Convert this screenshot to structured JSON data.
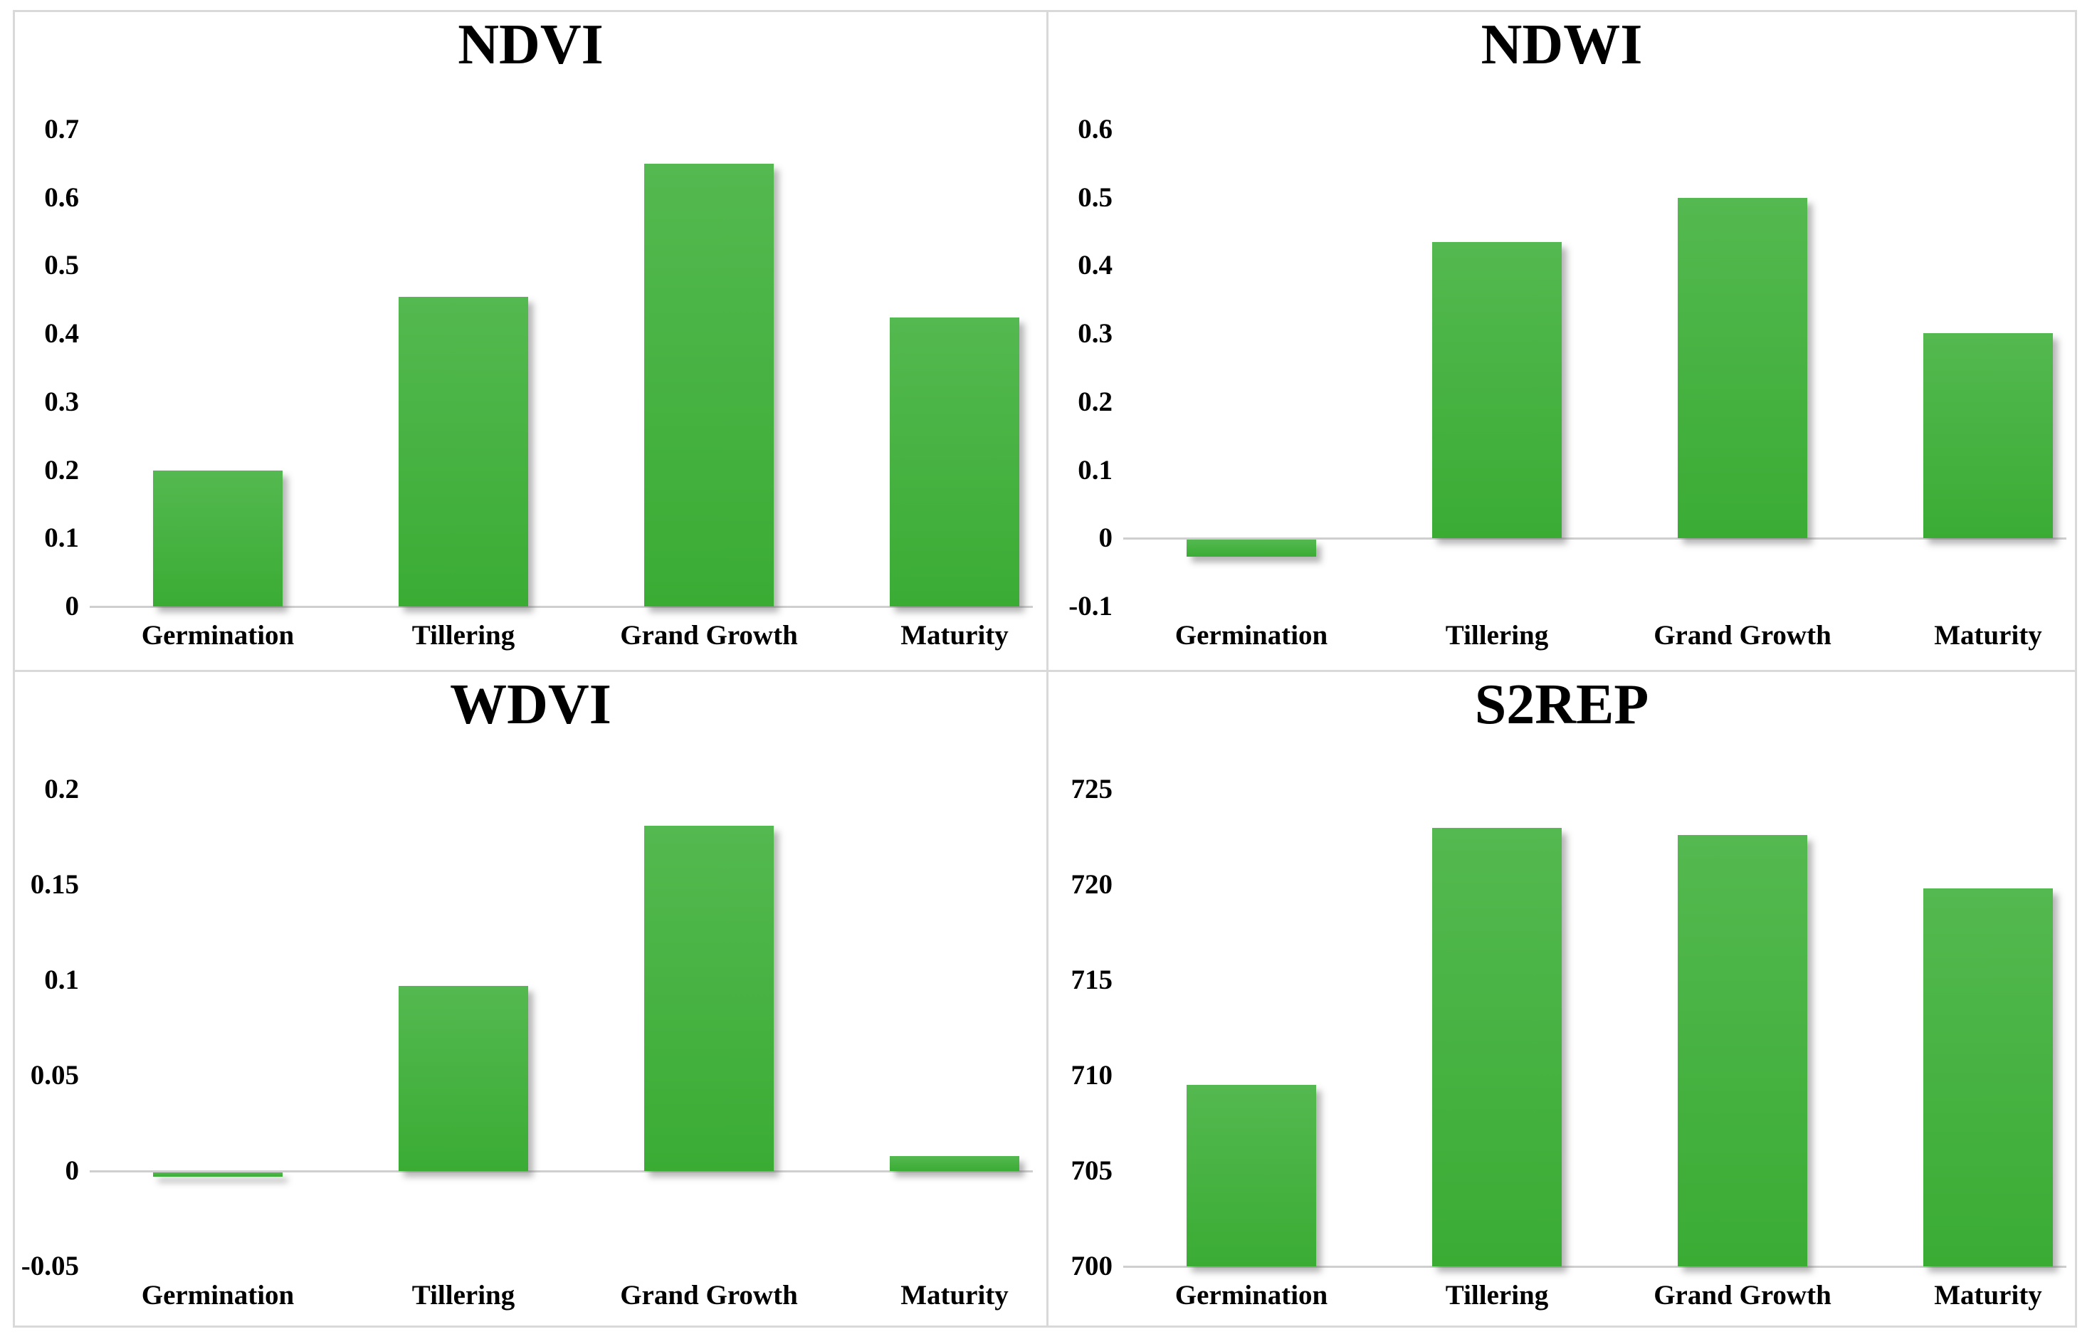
{
  "figure": {
    "background": "#ffffff",
    "border_color": "#d9d9d9",
    "axis_line_color": "#cfcfcf",
    "text_color": "#000000",
    "bar_color_top": "#54b950",
    "bar_color_bottom": "#3aac34"
  },
  "chart_data": [
    {
      "id": "ndvi",
      "type": "bar",
      "title": "NDVI",
      "categories": [
        "Germination",
        "Tillering",
        "Grand Growth",
        "Maturity"
      ],
      "values": [
        0.2,
        0.455,
        0.65,
        0.424
      ],
      "tick_labels": [
        "0.7",
        "0.6",
        "0.5",
        "0.4",
        "0.3",
        "0.2",
        "0.1",
        "0"
      ],
      "tick_values": [
        0.7,
        0.6,
        0.5,
        0.4,
        0.3,
        0.2,
        0.1,
        0
      ],
      "ylim": [
        0,
        0.7
      ],
      "baseline": 0,
      "xlabel": "",
      "ylabel": "",
      "legend": "none",
      "grid": false
    },
    {
      "id": "ndwi",
      "type": "bar",
      "title": "NDWI",
      "categories": [
        "Germination",
        "Tillering",
        "Grand Growth",
        "Maturity"
      ],
      "values": [
        -0.027,
        0.435,
        0.5,
        0.301
      ],
      "tick_labels": [
        "0.6",
        "0.5",
        "0.4",
        "0.3",
        "0.2",
        "0.1",
        "0",
        "-0.1"
      ],
      "tick_values": [
        0.6,
        0.5,
        0.4,
        0.3,
        0.2,
        0.1,
        0,
        -0.1
      ],
      "ylim": [
        -0.1,
        0.6
      ],
      "baseline": 0,
      "xlabel": "",
      "ylabel": "",
      "legend": "none",
      "grid": false
    },
    {
      "id": "wdvi",
      "type": "bar",
      "title": "WDVI",
      "categories": [
        "Germination",
        "Tillering",
        "Grand Growth",
        "Maturity"
      ],
      "values": [
        -0.003,
        0.097,
        0.181,
        0.008
      ],
      "tick_labels": [
        "0.2",
        "0.15",
        "0.1",
        "0.05",
        "0",
        "-0.05"
      ],
      "tick_values": [
        0.2,
        0.15,
        0.1,
        0.05,
        0,
        -0.05
      ],
      "ylim": [
        -0.05,
        0.2
      ],
      "baseline": 0,
      "xlabel": "",
      "ylabel": "",
      "legend": "none",
      "grid": false
    },
    {
      "id": "s2rep",
      "type": "bar",
      "title": "S2REP",
      "categories": [
        "Germination",
        "Tillering",
        "Grand Growth",
        "Maturity"
      ],
      "values": [
        709.5,
        723.0,
        722.6,
        719.8
      ],
      "tick_labels": [
        "725",
        "720",
        "715",
        "710",
        "705",
        "700"
      ],
      "tick_values": [
        725,
        720,
        715,
        710,
        705,
        700
      ],
      "ylim": [
        700,
        725
      ],
      "baseline": 700,
      "xlabel": "",
      "ylabel": "",
      "legend": "none",
      "grid": false
    }
  ]
}
